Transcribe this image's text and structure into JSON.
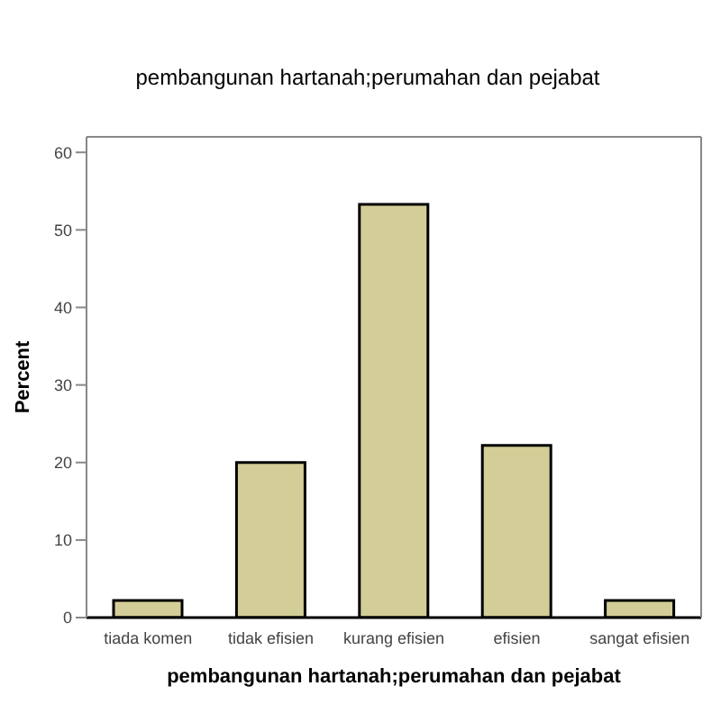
{
  "chart_data": {
    "type": "bar",
    "title": "pembangunan hartanah;perumahan dan pejabat",
    "xlabel": "pembangunan hartanah;perumahan dan pejabat",
    "ylabel": "Percent",
    "categories": [
      "tiada komen",
      "tidak efisien",
      "kurang efisien",
      "efisien",
      "sangat efisien"
    ],
    "values": [
      2.2,
      20,
      53.3,
      22.2,
      2.2
    ],
    "color": "#d3ce97",
    "ylim": [
      0,
      62
    ],
    "yticks": [
      0,
      10,
      20,
      30,
      40,
      50,
      60
    ],
    "grid": false,
    "legend": false
  }
}
